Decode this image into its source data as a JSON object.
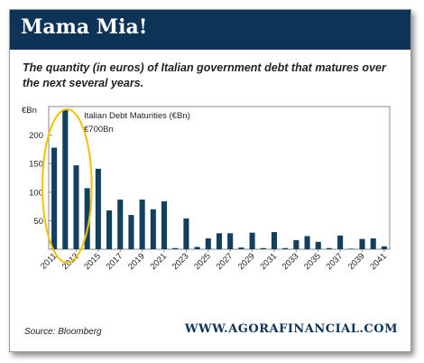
{
  "banner": {
    "title": "Mama Mia!"
  },
  "subtitle": "The quantity (in euros) of  Italian government debt that matures over the next several years.",
  "footer": {
    "source": "Source: Bloomberg",
    "website": "WWW.AGORAFINANCIAL.COM"
  },
  "colors": {
    "banner": "#0d3357",
    "bar": "#14405f",
    "highlight_circle": "#f2c200"
  },
  "chart_data": {
    "type": "bar",
    "title": "Italian Debt Maturities (€Bn)",
    "annotation": "€700Bn",
    "ylabel": "€Bn",
    "ylim": [
      0,
      250
    ],
    "yticks": [
      50,
      100,
      150,
      200
    ],
    "yticks_labels": [
      "50",
      "100",
      "150",
      "200"
    ],
    "categories": [
      "2011",
      "2012",
      "2013",
      "2014",
      "2015",
      "2016",
      "2017",
      "2018",
      "2019",
      "2020",
      "2021",
      "2022",
      "2023",
      "2024",
      "2025",
      "2026",
      "2027",
      "2028",
      "2029",
      "2030",
      "2031",
      "2032",
      "2033",
      "2034",
      "2035",
      "2036",
      "2037",
      "2038",
      "2039",
      "2040",
      "2041"
    ],
    "xtick_labels": [
      "2011",
      "2013",
      "2015",
      "2017",
      "2019",
      "2021",
      "2023",
      "2025",
      "2027",
      "2029",
      "2031",
      "2033",
      "2035",
      "2037",
      "2039",
      "2041"
    ],
    "values": [
      178,
      245,
      147,
      107,
      141,
      68,
      87,
      60,
      87,
      70,
      84,
      2,
      54,
      4,
      19,
      28,
      28,
      3,
      29,
      2,
      30,
      2,
      16,
      23,
      13,
      2,
      24,
      1,
      18,
      19,
      5
    ],
    "highlight": {
      "categories": [
        "2011",
        "2012",
        "2013",
        "2014"
      ],
      "style": "ellipse"
    },
    "grid": false
  }
}
